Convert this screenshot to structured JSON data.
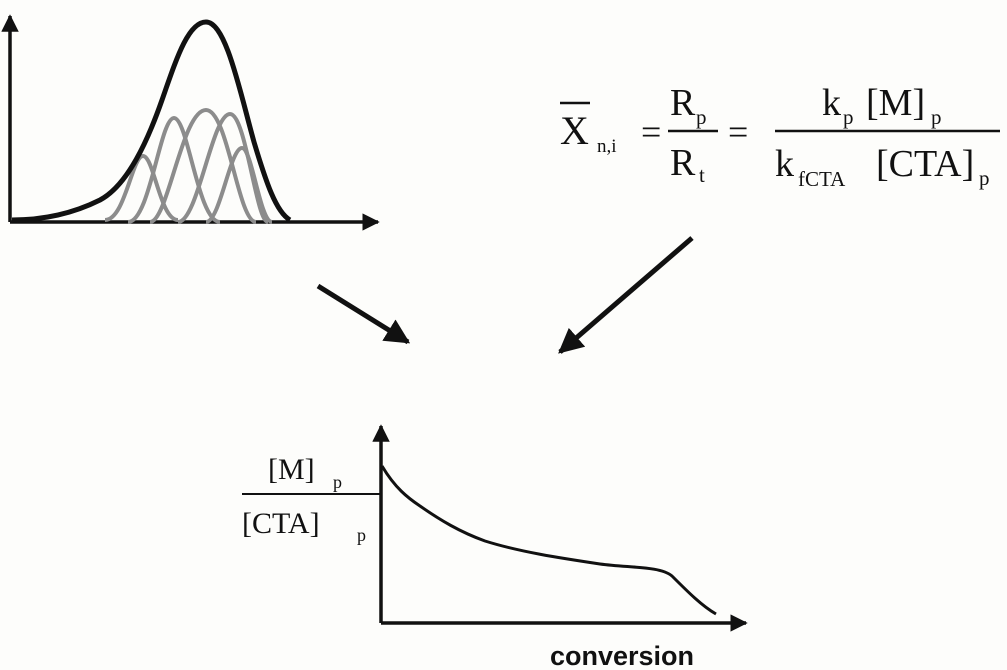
{
  "colors": {
    "ink": "#111111",
    "gray_curves": "#8c8c8c",
    "background": "#fdfdfb"
  },
  "equation": {
    "lhs_symbol": "X",
    "lhs_subscript": "n,i",
    "equals": "=",
    "ratio1_num_base": "R",
    "ratio1_num_sub": "p",
    "ratio1_den_base": "R",
    "ratio1_den_sub": "t",
    "ratio2_num_base": "k",
    "ratio2_num_sub": "p",
    "ratio2_num_bracket": "[M]",
    "ratio2_num_bracket_sub": "p",
    "ratio2_den_base": "k",
    "ratio2_den_sub": "fCTA",
    "ratio2_den_bracket": "[CTA]",
    "ratio2_den_bracket_sub": "p"
  },
  "bottom_plot": {
    "ylabel_num": "[M]",
    "ylabel_num_sub": "p",
    "ylabel_den": "[CTA]",
    "ylabel_den_sub": "p",
    "xlabel": "conversion"
  },
  "icons": [
    "arrow-icon"
  ]
}
